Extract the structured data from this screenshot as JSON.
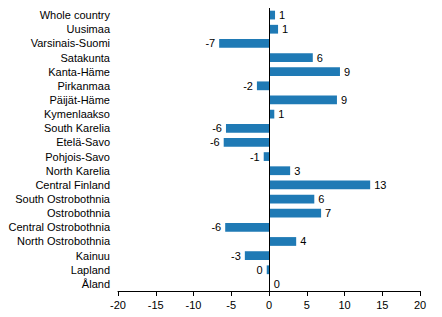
{
  "chart_data": {
    "type": "bar",
    "orientation": "horizontal",
    "categories": [
      "Whole country",
      "Uusimaa",
      "Varsinais-Suomi",
      "Satakunta",
      "Kanta-Häme",
      "Pirkanmaa",
      "Päijät-Häme",
      "Kymenlaakso",
      "South Karelia",
      "Etelä-Savo",
      "Pohjois-Savo",
      "North Karelia",
      "Central Finland",
      "South Ostrobothnia",
      "Ostrobothnia",
      "Central Ostrobothnia",
      "North Ostrobothnia",
      "Kainuu",
      "Lapland",
      "Åland"
    ],
    "values": [
      0.8,
      1.2,
      -6.6,
      5.8,
      9.4,
      -1.6,
      9.0,
      0.7,
      -5.7,
      -6.0,
      -0.7,
      2.8,
      13.4,
      6.0,
      6.9,
      -5.8,
      3.6,
      -3.2,
      -0.3,
      0.1
    ],
    "value_labels": [
      "1",
      "1",
      "-7",
      "6",
      "9",
      "-2",
      "9",
      "1",
      "-6",
      "-6",
      "-1",
      "3",
      "13",
      "6",
      "7",
      "-6",
      "4",
      "-3",
      "0",
      "0"
    ],
    "data_labels": true,
    "color": "#1f7ab5",
    "xlim": [
      -20,
      20
    ],
    "xticks": [
      -20,
      -15,
      -10,
      -5,
      0,
      5,
      10,
      15,
      20
    ],
    "grid": false
  }
}
